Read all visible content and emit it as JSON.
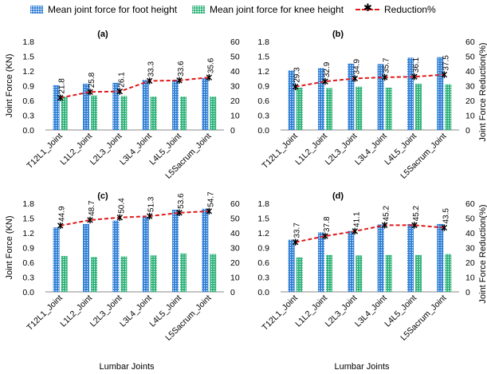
{
  "legend": {
    "foot": "Mean joint force for foot height",
    "knee": "Mean joint force for knee height",
    "reduction": "Reduction%"
  },
  "colors": {
    "foot": "#2f7fd6",
    "knee": "#2fb37a",
    "reduction": "#e0191b",
    "marker": "#000000"
  },
  "chart_data": [
    {
      "type": "bar",
      "panel": "(a)",
      "categories": [
        "T12L1_Joint",
        "L1L2_Joint",
        "L2L3_Joint",
        "L3L4_Joint",
        "L4L5_Joint",
        "L5Sacrum_Joint"
      ],
      "series": [
        {
          "name": "Mean joint force for foot height",
          "values": [
            0.91,
            0.94,
            0.96,
            1.02,
            1.02,
            1.05
          ]
        },
        {
          "name": "Mean joint force for knee height",
          "values": [
            0.68,
            0.7,
            0.69,
            0.68,
            0.68,
            0.68
          ]
        },
        {
          "name": "Reduction%",
          "values": [
            21.8,
            25.8,
            26.1,
            33.3,
            33.6,
            35.6
          ],
          "axis": "secondary"
        }
      ],
      "data_labels": [
        "21.8",
        "25.8",
        "26.1",
        "33.3",
        "33.6",
        "35.6"
      ],
      "ylabel": "Joint  Force (KN)",
      "y2label": "",
      "xlabel": "",
      "ylim": [
        0,
        1.8
      ],
      "yticks": [
        "0.0",
        "0.3",
        "0.6",
        "0.9",
        "1.2",
        "1.5",
        "1.8"
      ],
      "y2lim": [
        0,
        60
      ],
      "y2ticks": [
        "0",
        "10",
        "20",
        "30",
        "40",
        "50",
        "60"
      ]
    },
    {
      "type": "bar",
      "panel": "(b)",
      "categories": [
        "T12L1_Joint",
        "L1L2_Joint",
        "L2L3_Joint",
        "L3L4_Joint",
        "L4L5_Joint",
        "L5Sacrum_Joint"
      ],
      "series": [
        {
          "name": "Mean joint force for foot height",
          "values": [
            1.21,
            1.26,
            1.35,
            1.34,
            1.47,
            1.48
          ]
        },
        {
          "name": "Mean joint force for knee height",
          "values": [
            0.86,
            0.85,
            0.88,
            0.86,
            0.94,
            0.93
          ]
        },
        {
          "name": "Reduction%",
          "values": [
            29.3,
            32.9,
            34.9,
            35.7,
            36.1,
            37.5
          ],
          "axis": "secondary"
        }
      ],
      "data_labels": [
        "29.3",
        "32.9",
        "34.9",
        "35.7",
        "36.1",
        "37.5"
      ],
      "ylabel": "",
      "y2label": "Joint Force Reduction(%)",
      "xlabel": "",
      "ylim": [
        0,
        1.8
      ],
      "yticks": [
        "0.0",
        "0.3",
        "0.6",
        "0.9",
        "1.2",
        "1.5",
        "1.8"
      ],
      "y2lim": [
        0,
        60
      ],
      "y2ticks": [
        "0",
        "10",
        "20",
        "30",
        "40",
        "50",
        "60"
      ]
    },
    {
      "type": "bar",
      "panel": "(c)",
      "categories": [
        "T12L1_Joint",
        "L1L2_Joint",
        "L2L3_Joint",
        "L3L4_Joint",
        "L4L5_Joint",
        "L5Sacrum_Joint"
      ],
      "series": [
        {
          "name": "Mean joint force for foot height",
          "values": [
            1.31,
            1.38,
            1.45,
            1.53,
            1.67,
            1.69
          ]
        },
        {
          "name": "Mean joint force for knee height",
          "values": [
            0.73,
            0.71,
            0.72,
            0.74,
            0.78,
            0.77
          ]
        },
        {
          "name": "Reduction%",
          "values": [
            44.9,
            48.7,
            50.4,
            51.3,
            53.6,
            54.7
          ],
          "axis": "secondary"
        }
      ],
      "data_labels": [
        "44.9",
        "48.7",
        "50.4",
        "51.3",
        "53.6",
        "54.7"
      ],
      "ylabel": "Joint  Force (KN)",
      "y2label": "",
      "xlabel": "Lumbar Joints",
      "ylim": [
        0,
        1.8
      ],
      "yticks": [
        "0.0",
        "0.3",
        "0.6",
        "0.9",
        "1.2",
        "1.5",
        "1.8"
      ],
      "y2lim": [
        0,
        60
      ],
      "y2ticks": [
        "0",
        "10",
        "20",
        "30",
        "40",
        "50",
        "60"
      ]
    },
    {
      "type": "bar",
      "panel": "(d)",
      "categories": [
        "T12L1_Joint",
        "L1L2_Joint",
        "L2L3_Joint",
        "L3L4_Joint",
        "L4L5_Joint",
        "L5Sacrum_Joint"
      ],
      "series": [
        {
          "name": "Mean joint force for foot height",
          "values": [
            1.06,
            1.21,
            1.24,
            1.37,
            1.38,
            1.38
          ]
        },
        {
          "name": "Mean joint force for knee height",
          "values": [
            0.7,
            0.75,
            0.74,
            0.75,
            0.75,
            0.77
          ]
        },
        {
          "name": "Reduction%",
          "values": [
            33.7,
            37.8,
            41.1,
            45.2,
            45.2,
            43.5
          ],
          "axis": "secondary"
        }
      ],
      "data_labels": [
        "33.7",
        "37.8",
        "41.1",
        "45.2",
        "45.2",
        "43.5"
      ],
      "ylabel": "",
      "y2label": "Joint Force Reduction(%)",
      "xlabel": "Lumbar Joints",
      "ylim": [
        0,
        1.8
      ],
      "yticks": [
        "0.0",
        "0.3",
        "0.6",
        "0.9",
        "1.2",
        "1.5",
        "1.8"
      ],
      "y2lim": [
        0,
        60
      ],
      "y2ticks": [
        "0",
        "10",
        "20",
        "30",
        "40",
        "50",
        "60"
      ]
    }
  ]
}
